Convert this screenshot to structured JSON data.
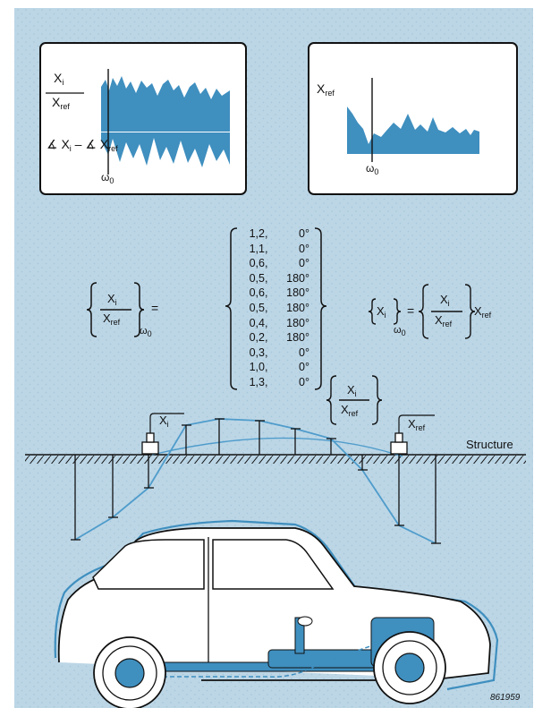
{
  "colors": {
    "background": "#bcd6e6",
    "accent_blue": "#3f8fbf",
    "line_blue": "#4f9ccb",
    "ink": "#111111",
    "panel": "#ffffff"
  },
  "panel_left": {
    "ratio_num": "X",
    "ratio_num_sub": "i",
    "ratio_den": "X",
    "ratio_den_sub": "ref",
    "phase_label_a": "∡ X",
    "phase_label_a_sub": "i",
    "phase_minus": "–",
    "phase_label_b": "∡ X",
    "phase_label_b_sub": "ref",
    "omega": "ω",
    "omega_sub": "0"
  },
  "panel_right": {
    "ylabel": "X",
    "ylabel_sub": "ref",
    "omega": "ω",
    "omega_sub": "0"
  },
  "equation_left": {
    "num": "X",
    "num_sub": "i",
    "den": "X",
    "den_sub": "ref",
    "omega": "ω",
    "omega_sub": "0",
    "equals": "="
  },
  "matrix": {
    "rows": [
      {
        "re": "1,2",
        "phase": "0°"
      },
      {
        "re": "1,1",
        "phase": "0°"
      },
      {
        "re": "0,6",
        "phase": "0°"
      },
      {
        "re": "0,5",
        "phase": "180°"
      },
      {
        "re": "0,6",
        "phase": "180°"
      },
      {
        "re": "0,5",
        "phase": "180°"
      },
      {
        "re": "0,4",
        "phase": "180°"
      },
      {
        "re": "0,2",
        "phase": "180°"
      },
      {
        "re": "0,3",
        "phase": "0°"
      },
      {
        "re": "1,0",
        "phase": "0°"
      },
      {
        "re": "1,3",
        "phase": "0°"
      }
    ]
  },
  "equation_right": {
    "lhs": "X",
    "lhs_sub": "i",
    "omega": "ω",
    "omega_sub": "0",
    "equals": "=",
    "num": "X",
    "num_sub": "i",
    "den": "X",
    "den_sub": "ref",
    "rhs": "X",
    "rhs_sub": "ref"
  },
  "mode_label": {
    "num": "X",
    "num_sub": "i",
    "den": "X",
    "den_sub": "ref"
  },
  "sensor_labels": {
    "xi": "X",
    "xi_sub": "i",
    "xref": "X",
    "xref_sub": "ref"
  },
  "structure_label": "Structure",
  "figure_number": "861959"
}
